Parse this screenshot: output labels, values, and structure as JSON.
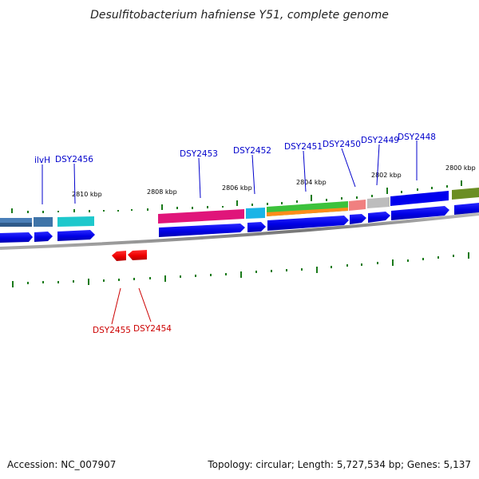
{
  "title": "Desulfitobacterium hafniense Y51, complete genome",
  "footer": {
    "accession": "Accession: NC_007907",
    "topology": "Topology: circular; Length: 5,727,534 bp; Genes: 5,137"
  },
  "ruler_labels": [
    "2810 kbp",
    "2808 kbp",
    "2806 kbp",
    "2804 kbp",
    "2802 kbp",
    "2800 kbp"
  ],
  "genes_forward": [
    "ilvH",
    "DSY2456",
    "DSY2453",
    "DSY2452",
    "DSY2451",
    "DSY2450",
    "DSY2449",
    "DSY2448"
  ],
  "genes_reverse": [
    "DSY2455",
    "DSY2454"
  ],
  "colors": {
    "forward_gene": "#0000ee",
    "reverse_gene": "#ee0000",
    "forward_label": "#0000cc",
    "reverse_label": "#cc0000",
    "tick": "#1a7a1a",
    "backbone": "#888888"
  }
}
